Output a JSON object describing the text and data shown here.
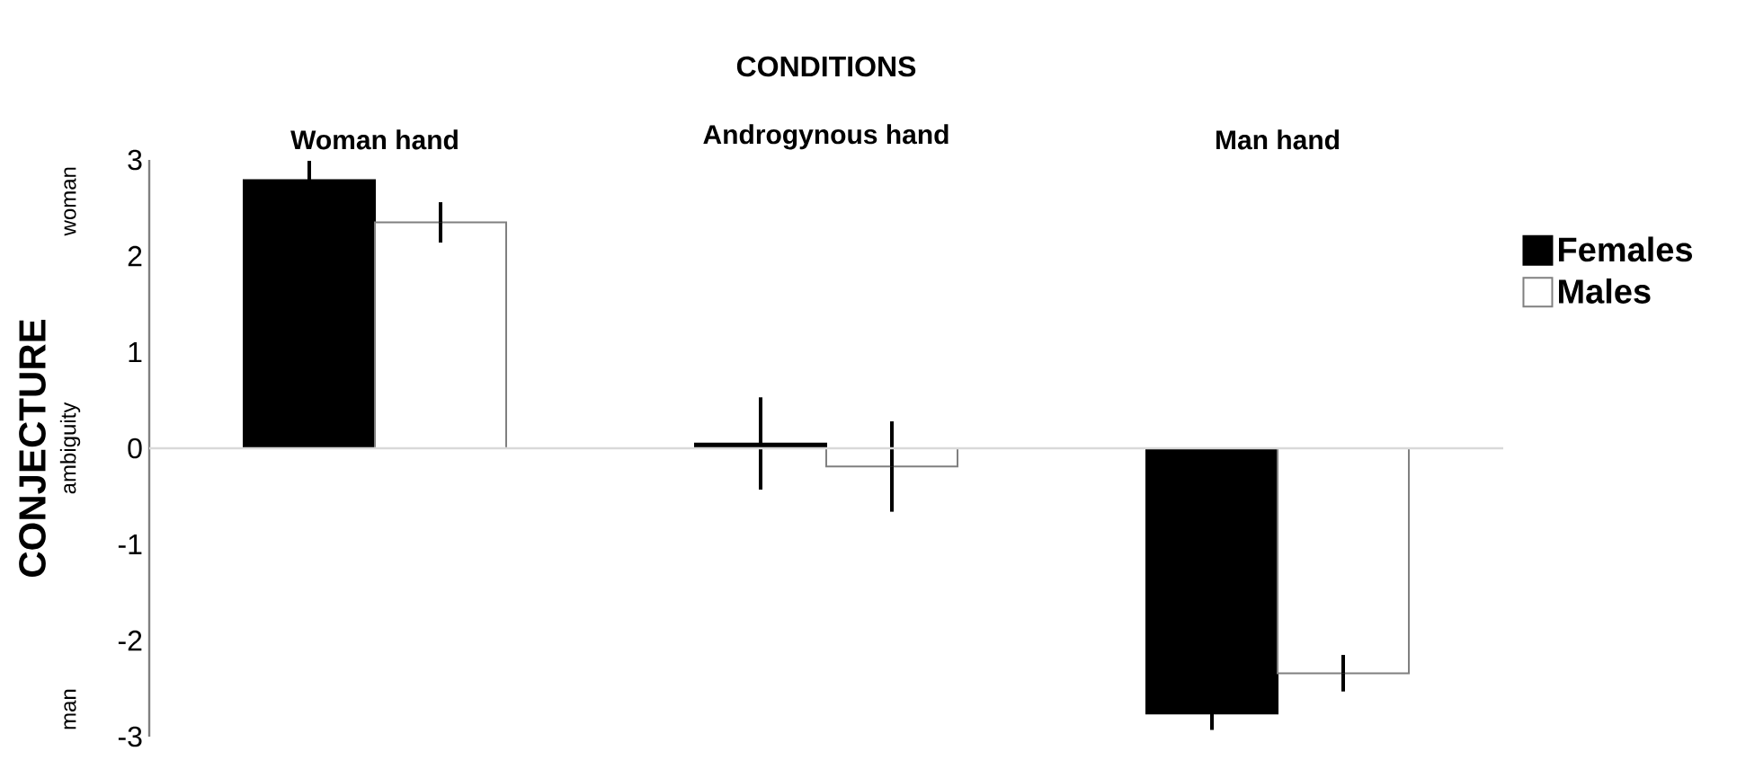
{
  "chart_data": {
    "type": "bar",
    "title": "CONDITIONS",
    "ylabel": "CONJECTURE",
    "annotations": [
      "woman",
      "ambiguity",
      "man"
    ],
    "categories": [
      "Woman hand",
      "Androgynous hand",
      "Man hand"
    ],
    "series": [
      {
        "name": "Females",
        "color": "#000000",
        "values": [
          2.79,
          0.05,
          -2.76
        ],
        "errors": [
          0.2,
          0.48,
          0.17
        ]
      },
      {
        "name": "Males",
        "color": "#ffffff",
        "values": [
          2.35,
          -0.19,
          -2.34
        ],
        "errors": [
          0.21,
          0.47,
          0.19
        ]
      }
    ],
    "ylim": [
      -3,
      3
    ],
    "yticks": [
      -3,
      -2,
      -1,
      0,
      1,
      2,
      3
    ],
    "legend": "right"
  }
}
